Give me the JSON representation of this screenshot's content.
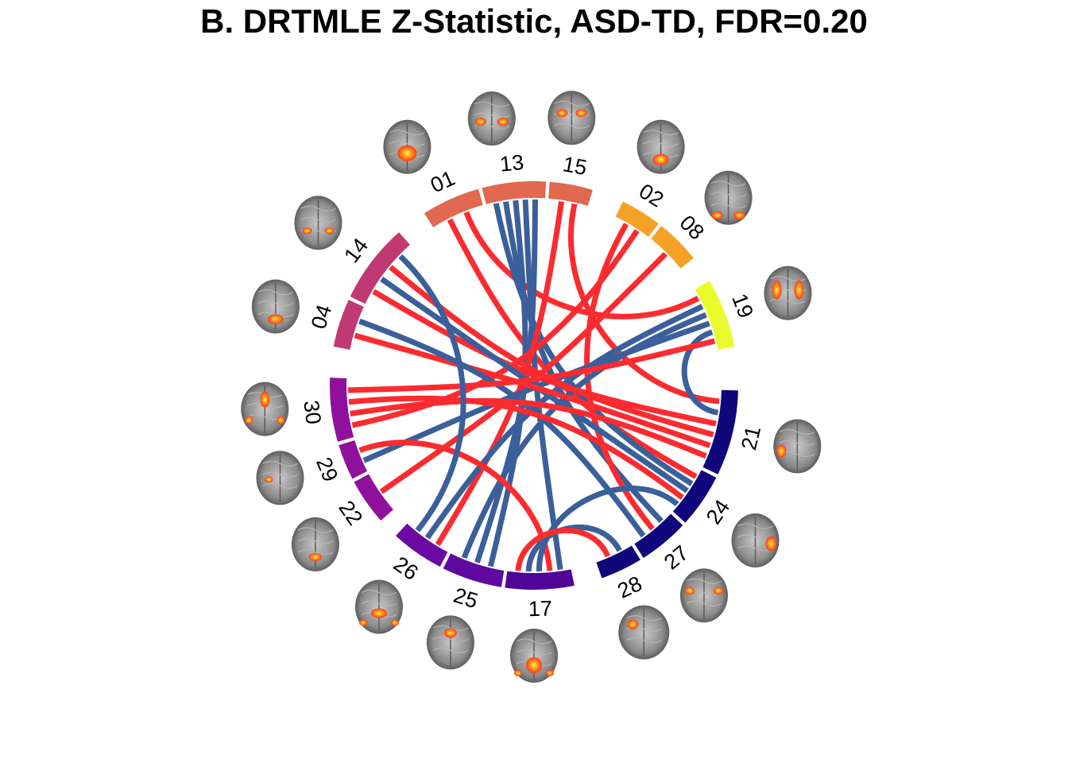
{
  "title": "B. DRTMLE Z-Statistic, ASD-TD, FDR=0.20",
  "colors": {
    "positive_link": "#fb2b2f",
    "negative_link": "#3a5f9a",
    "ring_gap": "#ffffff"
  },
  "chart_data": {
    "type": "chord",
    "sectors": [
      {
        "id": "01",
        "color": "#e0694f",
        "icon": "brain-axial-icon"
      },
      {
        "id": "13",
        "color": "#e0694f",
        "icon": "brain-axial-icon"
      },
      {
        "id": "15",
        "color": "#e0694f",
        "icon": "brain-axial-icon"
      },
      {
        "id": "02",
        "color": "#f5a127",
        "icon": "brain-axial-icon"
      },
      {
        "id": "08",
        "color": "#f5a127",
        "icon": "brain-coronal-icon"
      },
      {
        "id": "19",
        "color": "#e9fb2a",
        "icon": "brain-coronal-icon"
      },
      {
        "id": "21",
        "color": "#10087a",
        "icon": "brain-axial-icon"
      },
      {
        "id": "24",
        "color": "#10087a",
        "icon": "brain-axial-icon"
      },
      {
        "id": "27",
        "color": "#10087a",
        "icon": "brain-axial-icon"
      },
      {
        "id": "28",
        "color": "#10087a",
        "icon": "brain-sagittal-icon"
      },
      {
        "id": "17",
        "color": "#4f0497",
        "icon": "brain-axial-icon"
      },
      {
        "id": "25",
        "color": "#5e0aa0",
        "icon": "brain-coronal-icon"
      },
      {
        "id": "26",
        "color": "#6a0aa2",
        "icon": "brain-axial-icon"
      },
      {
        "id": "22",
        "color": "#8f119b",
        "icon": "brain-coronal-icon"
      },
      {
        "id": "29",
        "color": "#8f119b",
        "icon": "brain-axial-icon"
      },
      {
        "id": "30",
        "color": "#8f119b",
        "icon": "brain-coronal-icon"
      },
      {
        "id": "04",
        "color": "#c03972",
        "icon": "brain-coronal-icon"
      },
      {
        "id": "14",
        "color": "#c03972",
        "icon": "brain-coronal-icon"
      }
    ],
    "links": [
      {
        "from": "01",
        "to": "24",
        "sign": "positive"
      },
      {
        "from": "01",
        "to": "19",
        "sign": "positive"
      },
      {
        "from": "13",
        "to": "24",
        "sign": "negative"
      },
      {
        "from": "13",
        "to": "27",
        "sign": "negative"
      },
      {
        "from": "13",
        "to": "25",
        "sign": "negative"
      },
      {
        "from": "13",
        "to": "17",
        "sign": "negative"
      },
      {
        "from": "13",
        "to": "25",
        "sign": "negative"
      },
      {
        "from": "15",
        "to": "26",
        "sign": "positive"
      },
      {
        "from": "15",
        "to": "21",
        "sign": "positive"
      },
      {
        "from": "02",
        "to": "27",
        "sign": "positive"
      },
      {
        "from": "02",
        "to": "30",
        "sign": "positive"
      },
      {
        "from": "08",
        "to": "22",
        "sign": "positive"
      },
      {
        "from": "19",
        "to": "26",
        "sign": "negative"
      },
      {
        "from": "19",
        "to": "25",
        "sign": "negative"
      },
      {
        "from": "19",
        "to": "29",
        "sign": "negative"
      },
      {
        "from": "19",
        "to": "21",
        "sign": "negative"
      },
      {
        "from": "14",
        "to": "21",
        "sign": "positive"
      },
      {
        "from": "14",
        "to": "24",
        "sign": "negative"
      },
      {
        "from": "14",
        "to": "21",
        "sign": "positive"
      },
      {
        "from": "04",
        "to": "21",
        "sign": "positive"
      },
      {
        "from": "04",
        "to": "27",
        "sign": "negative"
      },
      {
        "from": "30",
        "to": "21",
        "sign": "positive"
      },
      {
        "from": "30",
        "to": "24",
        "sign": "positive"
      },
      {
        "from": "30",
        "to": "19",
        "sign": "positive"
      },
      {
        "from": "29",
        "to": "17",
        "sign": "positive"
      },
      {
        "from": "26",
        "to": "14",
        "sign": "negative"
      },
      {
        "from": "17",
        "to": "24",
        "sign": "negative"
      },
      {
        "from": "17",
        "to": "28",
        "sign": "negative"
      },
      {
        "from": "28",
        "to": "17",
        "sign": "positive"
      }
    ]
  }
}
